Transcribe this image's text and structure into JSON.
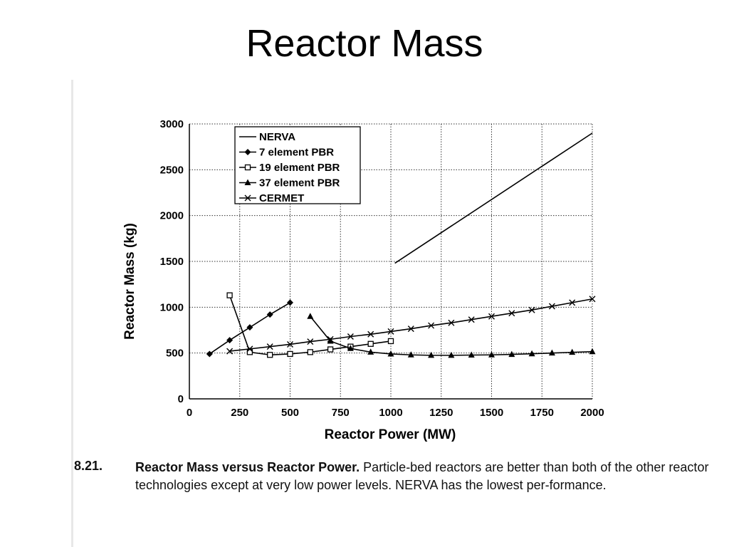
{
  "slide": {
    "title": "Reactor Mass"
  },
  "caption": {
    "number": "8.21.",
    "bold": "Reactor Mass versus Reactor Power.",
    "text": "Particle-bed reactors are better than both of the other reactor technologies except at very low power levels. NERVA has the lowest per-formance."
  },
  "chart_data": {
    "type": "line",
    "title": "",
    "xlabel": "Reactor Power (MW)",
    "ylabel": "Reactor Mass (kg)",
    "xlim": [
      0,
      2000
    ],
    "ylim": [
      0,
      3000
    ],
    "xticks": [
      0,
      250,
      500,
      750,
      1000,
      1250,
      1500,
      1750,
      2000
    ],
    "yticks": [
      0,
      500,
      1000,
      1500,
      2000,
      2500,
      3000
    ],
    "grid": "dotted horizontal",
    "legend_position": "top-left",
    "series": [
      {
        "name": "NERVA",
        "marker": "none",
        "x": [
          1020,
          2000
        ],
        "y": [
          1480,
          2900
        ]
      },
      {
        "name": "7 element PBR",
        "marker": "diamond",
        "x": [
          100,
          200,
          300,
          400,
          500
        ],
        "y": [
          490,
          640,
          780,
          920,
          1050
        ]
      },
      {
        "name": "19 element PBR",
        "marker": "square",
        "x": [
          200,
          300,
          400,
          500,
          600,
          700,
          800,
          900,
          1000
        ],
        "y": [
          1130,
          510,
          480,
          490,
          510,
          540,
          570,
          600,
          630
        ]
      },
      {
        "name": "37 element PBR",
        "marker": "triangle",
        "x": [
          600,
          700,
          800,
          900,
          1000,
          1100,
          1200,
          1300,
          1400,
          1500,
          1600,
          1700,
          1800,
          1900,
          2000
        ],
        "y": [
          900,
          630,
          550,
          510,
          490,
          480,
          475,
          475,
          478,
          480,
          485,
          492,
          500,
          508,
          515
        ]
      },
      {
        "name": "CERMET",
        "marker": "x",
        "x": [
          200,
          300,
          400,
          500,
          600,
          700,
          800,
          900,
          1000,
          1100,
          1200,
          1300,
          1400,
          1500,
          1600,
          1700,
          1800,
          1900,
          2000
        ],
        "y": [
          520,
          545,
          570,
          595,
          625,
          650,
          680,
          705,
          735,
          765,
          800,
          830,
          865,
          900,
          935,
          970,
          1010,
          1050,
          1090
        ]
      }
    ]
  }
}
